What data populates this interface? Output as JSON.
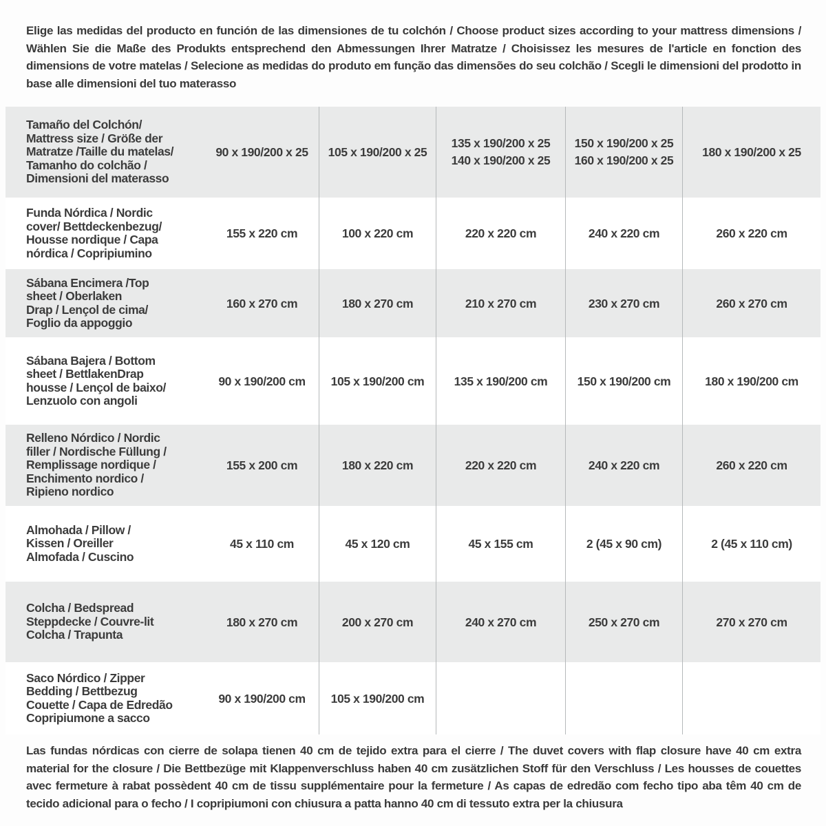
{
  "intro_text": "Elige las medidas del producto en función de las dimensiones de tu colchón / Choose product sizes according to your mattress dimensions / Wählen Sie die Maße des Produkts entsprechend den Abmessungen Ihrer Matratze / Choisissez les mesures de l'article en fonction des dimensions de votre matelas / Selecione as medidas do produto em função das dimensões do seu colchão / Scegli le dimensioni del prodotto in base alle dimensioni del tuo materasso",
  "footnote_text": "Las fundas nórdicas con cierre de solapa tienen 40 cm de tejido extra para el cierre  / The duvet covers with flap closure have 40 cm extra material for the closure / Die Bettbezüge mit Klappenverschluss haben 40 cm zusätzlichen Stoff für den Verschluss / Les housses de couettes avec fermeture à rabat possèdent 40 cm de tissu supplémentaire pour la fermeture / As capas de edredão com fecho tipo aba têm 40 cm de tecido adicional para o fecho / I copripiumoni con chiusura a patta hanno 40 cm di tessuto extra per la chiusura",
  "colors": {
    "row_shaded": "#e9eaea",
    "row_plain": "#ffffff",
    "column_divider": "#b5b8ba",
    "text": "#3c3c3c",
    "background": "#fdfdfd"
  },
  "size_table": {
    "rows": [
      {
        "label": [
          "Tamaño del Colchón/",
          "Mattress size / Größe der",
          "Matratze /Taille du matelas/",
          "Tamanho do colchão /",
          "Dimensioni del materasso"
        ],
        "values": [
          [
            "90 x 190/200 x 25"
          ],
          [
            "105 x 190/200 x 25"
          ],
          [
            "135 x 190/200 x 25",
            "140 x 190/200 x 25"
          ],
          [
            "150 x 190/200 x 25",
            "160 x 190/200 x 25"
          ],
          [
            "180 x 190/200 x 25"
          ]
        ]
      },
      {
        "label": [
          "Funda Nórdica /  Nordic",
          "cover/ Bettdeckenbezug/",
          "Housse nordique  / Capa",
          "nórdica / Copripiumino"
        ],
        "values": [
          [
            "155 x 220 cm"
          ],
          [
            "100 x 220 cm"
          ],
          [
            "220 x 220 cm"
          ],
          [
            "240 x 220 cm"
          ],
          [
            "260 x 220 cm"
          ]
        ]
      },
      {
        "label": [
          "Sábana Encimera /Top",
          "sheet / Oberlaken",
          "Drap / Lençol de cima/",
          "Foglio da appoggio"
        ],
        "values": [
          [
            "160 x 270 cm"
          ],
          [
            "180 x 270 cm"
          ],
          [
            "210 x 270 cm"
          ],
          [
            "230 x 270 cm"
          ],
          [
            "260 x 270 cm"
          ]
        ]
      },
      {
        "label": [
          "Sábana Bajera / Bottom",
          "sheet / BettlakenDrap",
          "housse / Lençol de baixo/",
          "Lenzuolo con angoli"
        ],
        "values": [
          [
            "90 x 190/200 cm"
          ],
          [
            "105 x 190/200 cm"
          ],
          [
            "135 x 190/200 cm"
          ],
          [
            "150 x 190/200 cm"
          ],
          [
            "180 x 190/200 cm"
          ]
        ]
      },
      {
        "label": [
          "Relleno Nórdico / Nordic",
          "filler / Nordische Füllung /",
          "Remplissage nordique /",
          "Enchimento nordico /",
          "Ripieno nordico"
        ],
        "values": [
          [
            "155 x 200 cm"
          ],
          [
            "180 x 220 cm"
          ],
          [
            "220 x 220 cm"
          ],
          [
            "240 x 220 cm"
          ],
          [
            "260 x 220 cm"
          ]
        ]
      },
      {
        "label": [
          "Almohada  / Pillow /",
          "Kissen / Oreiller",
          "Almofada / Cuscino"
        ],
        "values": [
          [
            "45 x 110 cm"
          ],
          [
            "45 x 120 cm"
          ],
          [
            "45 x 155 cm"
          ],
          [
            "2 (45 x 90 cm)"
          ],
          [
            "2 (45 x 110 cm)"
          ]
        ]
      },
      {
        "label": [
          "Colcha / Bedspread",
          "Steppdecke / Couvre-lit",
          "Colcha / Trapunta"
        ],
        "values": [
          [
            "180 x 270 cm"
          ],
          [
            "200 x 270 cm"
          ],
          [
            "240 x 270 cm"
          ],
          [
            "250 x 270 cm"
          ],
          [
            "270 x 270 cm"
          ]
        ]
      },
      {
        "label": [
          "Saco Nórdico / Zipper",
          "Bedding / Bettbezug",
          "Couette  / Capa de Edredão",
          "Copripiumone a sacco"
        ],
        "values": [
          [
            "90 x 190/200 cm"
          ],
          [
            "105 x 190/200 cm"
          ],
          [
            ""
          ],
          [
            ""
          ],
          [
            ""
          ]
        ]
      }
    ]
  }
}
